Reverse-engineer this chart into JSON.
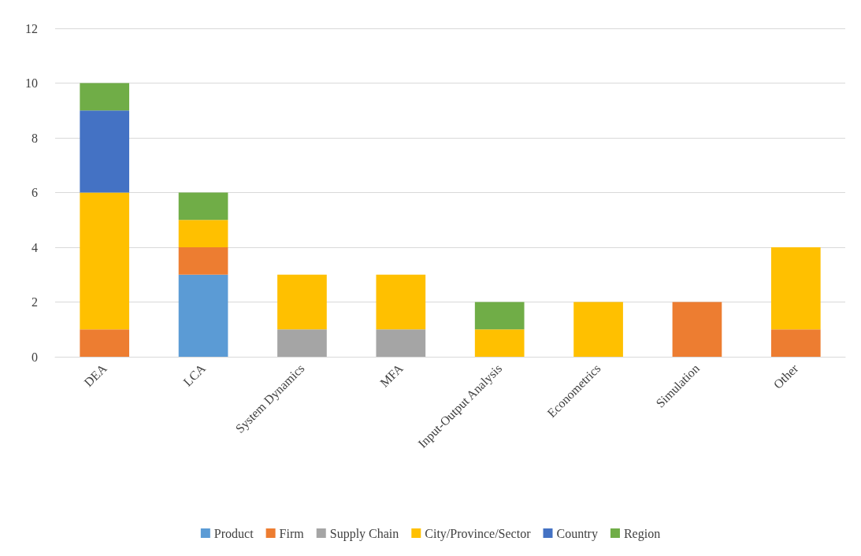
{
  "chart_data": {
    "type": "bar",
    "stacked": true,
    "categories": [
      "DEA",
      "LCA",
      "System Dynamics",
      "MFA",
      "Input-Output Analysis",
      "Econometrics",
      "Simulation",
      "Other"
    ],
    "series": [
      {
        "name": "Product",
        "color": "#5b9bd5",
        "values": [
          0,
          3,
          0,
          0,
          0,
          0,
          0,
          0
        ]
      },
      {
        "name": "Firm",
        "color": "#ed7d31",
        "values": [
          1,
          1,
          0,
          0,
          0,
          0,
          2,
          1
        ]
      },
      {
        "name": "Supply Chain",
        "color": "#a5a5a5",
        "values": [
          0,
          0,
          1,
          1,
          0,
          0,
          0,
          0
        ]
      },
      {
        "name": "City/Province/Sector",
        "color": "#ffc000",
        "values": [
          5,
          1,
          2,
          2,
          1,
          2,
          0,
          3
        ]
      },
      {
        "name": "Country",
        "color": "#4472c4",
        "values": [
          3,
          0,
          0,
          0,
          0,
          0,
          0,
          0
        ]
      },
      {
        "name": "Region",
        "color": "#70ad47",
        "values": [
          1,
          1,
          0,
          0,
          1,
          0,
          0,
          0
        ]
      }
    ],
    "ylim": [
      0,
      12
    ],
    "yticks": [
      0,
      2,
      4,
      6,
      8,
      10,
      12
    ],
    "grid": "y",
    "legend": "bottom"
  }
}
